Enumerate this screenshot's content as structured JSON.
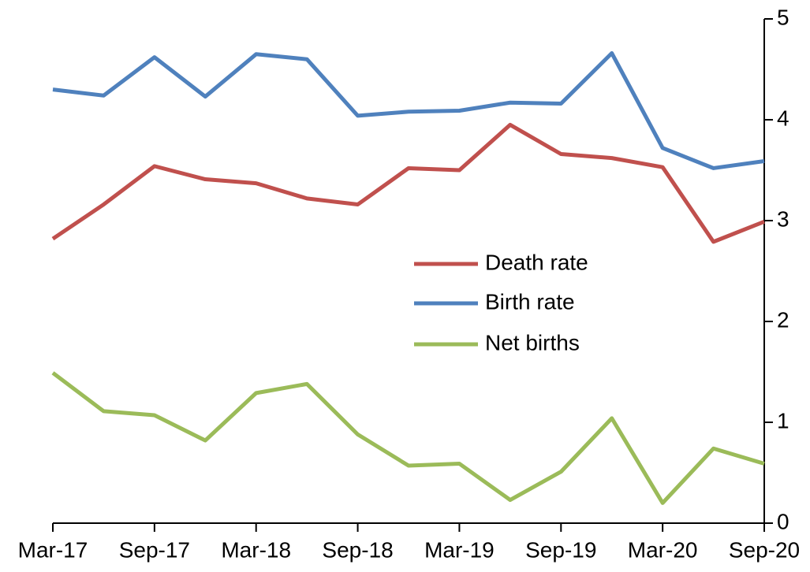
{
  "chart_data": {
    "type": "line",
    "categories": [
      "Mar-17",
      null,
      "Sep-17",
      null,
      "Mar-18",
      null,
      "Sep-18",
      null,
      "Mar-19",
      null,
      "Sep-19",
      null,
      "Mar-20",
      null,
      "Sep-20"
    ],
    "series": [
      {
        "name": "Death rate",
        "color": "#c0504d",
        "values": [
          2.82,
          3.16,
          3.54,
          3.41,
          3.37,
          3.22,
          3.16,
          3.52,
          3.5,
          3.95,
          3.66,
          3.62,
          3.53,
          2.79,
          2.99
        ]
      },
      {
        "name": "Birth rate",
        "color": "#4f81bd",
        "values": [
          4.3,
          4.24,
          4.62,
          4.23,
          4.65,
          4.6,
          4.04,
          4.08,
          4.09,
          4.17,
          4.16,
          4.66,
          3.72,
          3.52,
          3.59
        ]
      },
      {
        "name": "Net births",
        "color": "#9bbb59",
        "values": [
          1.49,
          1.11,
          1.07,
          0.82,
          1.29,
          1.38,
          0.88,
          0.57,
          0.59,
          0.23,
          0.51,
          1.04,
          0.2,
          0.74,
          0.59
        ]
      }
    ],
    "ylim": [
      0,
      5
    ],
    "yticks": [
      0,
      1,
      2,
      3,
      4,
      5
    ],
    "y_axis_side": "right"
  }
}
